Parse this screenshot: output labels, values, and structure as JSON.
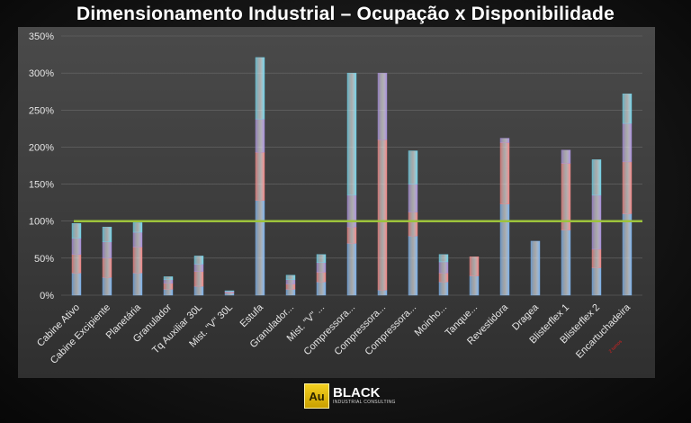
{
  "title": "Dimensionamento Industrial – Ocupação x Disponibilidade",
  "logo": {
    "mark": "Au",
    "name": "BLACK",
    "tagline": "INDUSTRIAL CONSULTING"
  },
  "chart_data": {
    "type": "bar",
    "stacked": true,
    "title": "Dimensionamento Industrial – Ocupação x Disponibilidade",
    "ylim": [
      0,
      350
    ],
    "yticks": [
      "0%",
      "50%",
      "100%",
      "150%",
      "200%",
      "250%",
      "300%",
      "350%"
    ],
    "grid": true,
    "reference_line": 100,
    "categories": [
      "Cabine Ativo",
      "Cabine Excipiente",
      "Planetária",
      "Granulador",
      "Tq Auxiliar 30L",
      "Mist. \"V\" 30L",
      "Estufa",
      "Granulador...",
      "Mist. \"V\" ...",
      "Compressora...",
      "Compressora...",
      "Compressora...",
      "Moinho...",
      "Tanque...",
      "Revestidora",
      "Dragea",
      "Blisterflex 1",
      "Blisterflex 2",
      "Encartuchadeira"
    ],
    "annotation": "2 turnos",
    "series": [
      {
        "values": [
          30,
          24,
          30,
          8,
          12,
          3,
          128,
          8,
          18,
          70,
          7,
          80,
          18,
          26,
          123,
          73,
          88,
          37,
          110
        ]
      },
      {
        "values": [
          25,
          26,
          35,
          8,
          20,
          1,
          65,
          7,
          13,
          22,
          203,
          32,
          12,
          26,
          83,
          0,
          90,
          25,
          70
        ]
      },
      {
        "values": [
          22,
          22,
          20,
          5,
          10,
          1,
          45,
          6,
          13,
          43,
          90,
          38,
          15,
          0,
          6,
          0,
          18,
          73,
          52
        ]
      },
      {
        "values": [
          20,
          20,
          13,
          4,
          11,
          1,
          83,
          6,
          11,
          165,
          0,
          45,
          10,
          0,
          0,
          0,
          0,
          48,
          40
        ]
      }
    ],
    "colors": [
      "#79aee8",
      "#ee8484",
      "#a68dd8",
      "#6fd0e6"
    ],
    "line_color": "#9dc33b"
  }
}
